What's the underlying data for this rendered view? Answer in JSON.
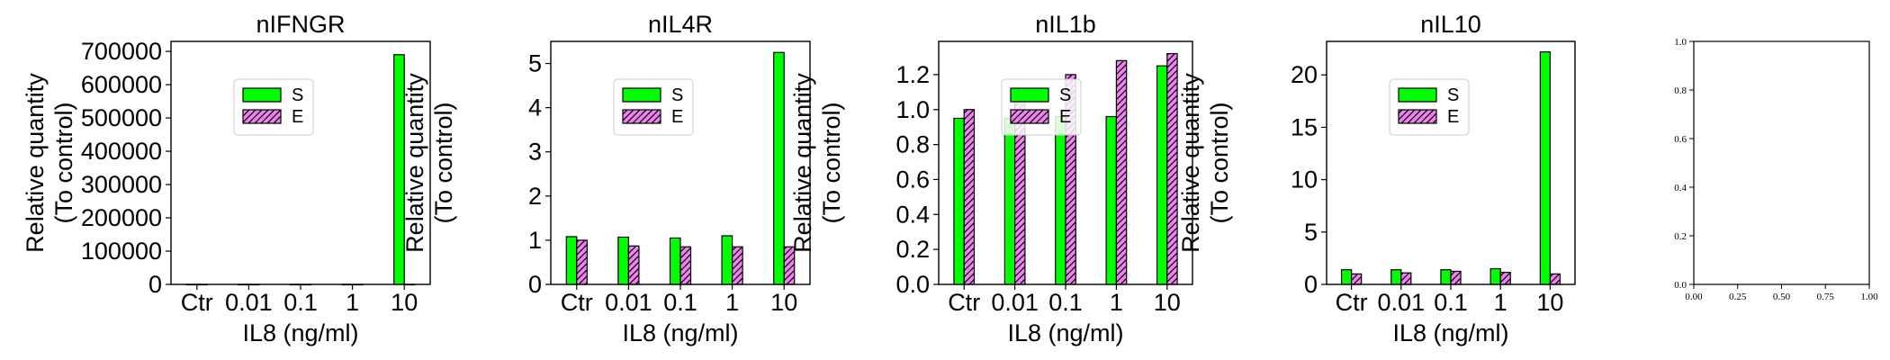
{
  "colors": {
    "series_S": "#00ff00",
    "series_E": "#ee82ee",
    "edge": "#000000",
    "axis": "#000000",
    "background": "#ffffff"
  },
  "chart_data": [
    {
      "type": "bar",
      "title": "nIFNGR",
      "xlabel": "IL8 (ng/ml)",
      "ylabel": "Relative quantity\n(To control)",
      "categories": [
        "Ctr",
        "0.01",
        "0.1",
        "1",
        "10"
      ],
      "ylim": [
        0,
        730000
      ],
      "yticks": [
        0,
        100000,
        200000,
        300000,
        400000,
        500000,
        600000,
        700000
      ],
      "legend": "upper-center",
      "grid": false,
      "series": [
        {
          "name": "S",
          "hatch": "none",
          "values": [
            1,
            1,
            1,
            1,
            690000
          ]
        },
        {
          "name": "E",
          "hatch": "diagonal",
          "values": [
            1,
            1,
            1,
            1,
            1
          ]
        }
      ]
    },
    {
      "type": "bar",
      "title": "nIL4R",
      "xlabel": "IL8 (ng/ml)",
      "ylabel": "Relative quantity\n(To control)",
      "categories": [
        "Ctr",
        "0.01",
        "0.1",
        "1",
        "10"
      ],
      "ylim": [
        0,
        5.5
      ],
      "yticks": [
        0,
        1,
        2,
        3,
        4,
        5
      ],
      "legend": "upper-center",
      "grid": false,
      "series": [
        {
          "name": "S",
          "hatch": "none",
          "values": [
            1.08,
            1.07,
            1.05,
            1.1,
            5.25
          ]
        },
        {
          "name": "E",
          "hatch": "diagonal",
          "values": [
            1.0,
            0.87,
            0.85,
            0.85,
            0.85
          ]
        }
      ]
    },
    {
      "type": "bar",
      "title": "nIL1b",
      "xlabel": "IL8 (ng/ml)",
      "ylabel": "Relative quantity\n(To control)",
      "categories": [
        "Ctr",
        "0.01",
        "0.1",
        "1",
        "10"
      ],
      "ylim": [
        0,
        1.39
      ],
      "yticks": [
        0.0,
        0.2,
        0.4,
        0.6,
        0.8,
        1.0,
        1.2
      ],
      "ytick_decimals": 1,
      "legend": "upper-center",
      "grid": false,
      "series": [
        {
          "name": "S",
          "hatch": "none",
          "values": [
            0.95,
            0.95,
            0.96,
            0.96,
            1.25
          ]
        },
        {
          "name": "E",
          "hatch": "diagonal",
          "values": [
            1.0,
            1.05,
            1.2,
            1.28,
            1.32
          ]
        }
      ]
    },
    {
      "type": "bar",
      "title": "nIL10",
      "xlabel": "IL8 (ng/ml)",
      "ylabel": "Relative quantity\n(To control)",
      "categories": [
        "Ctr",
        "0.01",
        "0.1",
        "1",
        "10"
      ],
      "ylim": [
        0,
        23.2
      ],
      "yticks": [
        0,
        5,
        10,
        15,
        20
      ],
      "legend": "upper-center",
      "grid": false,
      "series": [
        {
          "name": "S",
          "hatch": "none",
          "values": [
            1.4,
            1.4,
            1.4,
            1.5,
            22.2
          ]
        },
        {
          "name": "E",
          "hatch": "diagonal",
          "values": [
            1.0,
            1.1,
            1.25,
            1.15,
            1.0
          ]
        }
      ]
    },
    {
      "type": "empty",
      "title": "",
      "xlim": [
        0,
        1
      ],
      "ylim": [
        0,
        1
      ],
      "xticks": [
        0.0,
        0.25,
        0.5,
        0.75,
        1.0
      ],
      "xtick_labels": [
        "0.00",
        "0.25",
        "0.50",
        "0.75",
        "1.00"
      ],
      "yticks": [
        0.0,
        0.2,
        0.4,
        0.6,
        0.8,
        1.0
      ],
      "ytick_labels": [
        "0.0",
        "0.2",
        "0.4",
        "0.6",
        "0.8",
        "1.0"
      ]
    }
  ]
}
